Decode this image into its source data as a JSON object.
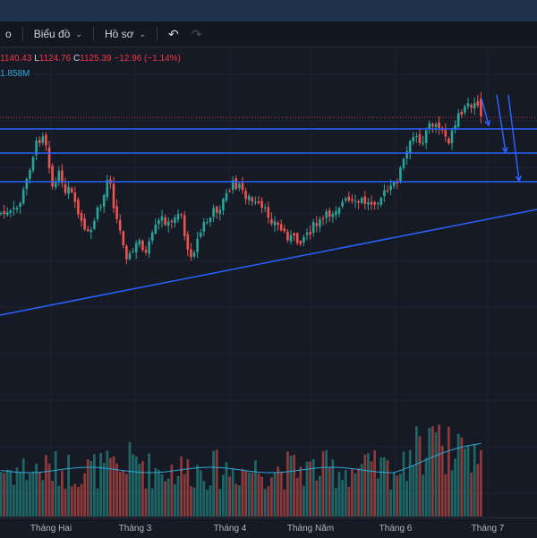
{
  "toolbar": {
    "partial_label": "o",
    "chart_menu_label": "Biểu đồ",
    "profile_menu_label": "Hồ sơ"
  },
  "legend": {
    "high_prefix": "",
    "high": "1140.43",
    "low_prefix": "L",
    "low": "1124.76",
    "close_prefix": "C",
    "close": "1125.39",
    "change": "−12.96 (−1.14%)",
    "volume_partial": "1.858M"
  },
  "colors": {
    "up": "#26a69a",
    "down": "#ef5350",
    "drawing": "#2962ff",
    "background": "#161a25"
  },
  "xaxis_labels": [
    "Tháng Hai",
    "Tháng 3",
    "Tháng 4",
    "Tháng Năm",
    "Tháng 6",
    "Tháng 7"
  ],
  "chart_data": {
    "type": "candlestick",
    "ohlc_visible": {
      "high": 1140.43,
      "low": 1124.76,
      "close": 1125.39,
      "change": -12.96,
      "change_pct": -1.14
    },
    "volume": "1.858M",
    "months": [
      "Tháng Hai",
      "Tháng 3",
      "Tháng 4",
      "Tháng Năm",
      "Tháng 6",
      "Tháng 7"
    ],
    "grid": true,
    "has_volume_pane": true,
    "has_volume_moving_average": true,
    "drawings": [
      "three horizontal support lines",
      "rising trend line",
      "three downward arrows"
    ]
  },
  "icons": {
    "undo": "undo-icon",
    "redo": "redo-icon",
    "chevron": "chevron-down-icon"
  }
}
